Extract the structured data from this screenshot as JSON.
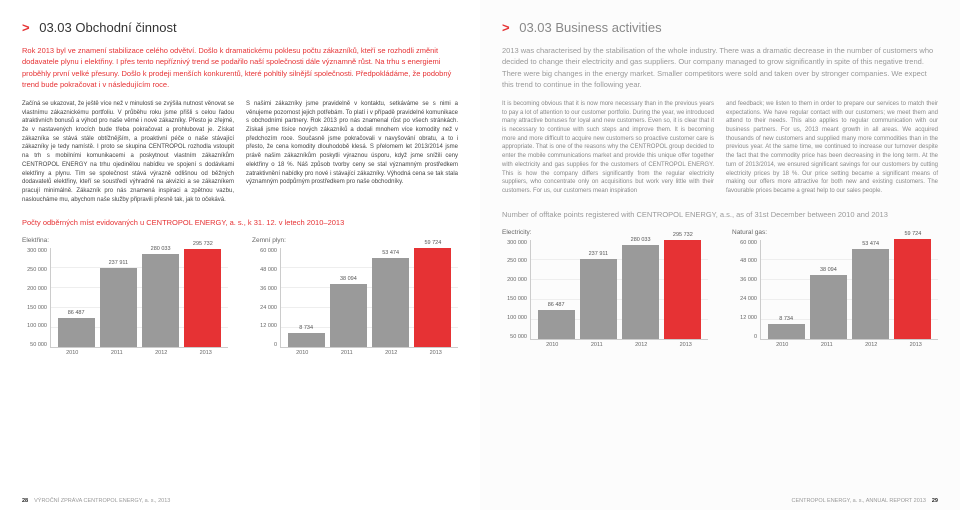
{
  "left": {
    "section_number": "03.03",
    "section_title": "Obchodní činnost",
    "lead": "Rok 2013 byl ve znamení stabilizace celého odvětví. Došlo k dramatickému poklesu počtu zákazníků, kteří se rozhodli změnit dodavatele plynu i elektřiny. I přes tento nepříznivý trend se podařilo naší společnosti dále významně růst. Na trhu s energiemi proběhly první velké přesuny. Došlo k prodeji menších konkurentů, které pohltily silnější společnosti. Předpokládáme, že podobný trend bude pokračovat i v následujícím roce.",
    "col1": "Začíná se ukazovat, že ještě více než v minulosti se zvýšila nutnost věnovat se vlastnímu zákaznickému portfoliu. V průběhu roku jsme přišli s celou řadou atraktivních bonusů a výhod pro naše věrné i nové zákazníky. Přesto je zřejmé, že v nastavených krocích bude třeba pokračovat a prohlubovat je. Získat zákazníka se stává stále obtížnějším, a proaktivní péče o naše stávající zákazníky je tedy namístě. I proto se skupina CENTROPOL rozhodla vstoupit na trh s mobilními komunikacemi a poskytnout vlastním zákazníkům CENTROPOL ENERGY na trhu ojedinělou nabídku ve spojení s dodávkami elektřiny a plynu. Tím se společnost stává výrazně odlišnou od běžných dodavatelů elektřiny, kteří se soustředí výhradně na akvizici a se zákazníkem pracují minimálně. Zákazník pro nás znamená inspiraci a zpětnou vazbu, nasloucháme mu, abychom naše služby připravili přesně tak, jak to očekává.",
    "col2": "S našimi zákazníky jsme pravidelně v kontaktu, setkáváme se s nimi a věnujeme pozornost jejich potřebám. To platí i v případě pravidelné komunikace s obchodními partnery.\n\nRok 2013 pro nás znamenal růst po všech stránkách. Získali jsme tisíce nových zákazníků a dodali mnohem více komodity než v předchozím roce. Současně jsme pokračovali v navyšování obratu, a to i přesto, že cena komodity dlouhodobě klesá. S přelomem let 2013/2014 jsme právě našim zákazníkům poskytli výraznou úsporu, když jsme snížili ceny elektřiny o 18 %. Náš způsob tvorby ceny se stal významným prostředkem zatraktivnění nabídky pro nové i stávající zákazníky. Výhodná cena se tak stala významným podpůrným prostředkem pro naše obchodníky.",
    "chart_caption": "Počty odběrných míst evidovaných u CENTROPOL ENERGY, a. s., k 31. 12. v letech 2010–2013",
    "chart_e_label": "Elektřina:",
    "chart_g_label": "Zemní plyn:",
    "footer_num": "28",
    "footer_text": "VÝROČNÍ ZPRÁVA CENTROPOL ENERGY, a. s., 2013"
  },
  "right": {
    "section_number": "03.03",
    "section_title": "Business activities",
    "lead": "2013 was characterised by the stabilisation of the whole industry. There was a dramatic decrease in the number of customers who decided to change their electricity and gas suppliers. Our company managed to grow significantly in spite of this negative trend. There were big changes in the energy market. Smaller competitors were sold and taken over by stronger companies. We expect this trend to continue in the following year.",
    "col1": "It is becoming obvious that it is now more necessary than in the previous years to pay a lot of attention to our customer portfolio. During the year, we introduced many attractive bonuses for loyal and new customers. Even so, it is clear that it is necessary to continue with such steps and improve them. It is becoming more and more difficult to acquire new customers so proactive customer care is appropriate. That is one of the reasons why the CENTROPOL group decided to enter the mobile communications market and provide this unique offer together with electricity and gas supplies for the customers of CENTROPOL ENERGY. This is how the company differs significantly from the regular electricity suppliers, who concentrate only on acquisitions but work very little with their customers. For us, our customers mean inspiration",
    "col2": "and feedback; we listen to them in order to prepare our services to match their expectations. We have regular contact with our customers; we meet them and attend to their needs. This also applies to regular communication with our business partners.\n\nFor us, 2013 meant growth in all areas. We acquired thousands of new customers and supplied many more commodities than in the previous year. At the same time, we continued to increase our turnover despite the fact that the commodity price has been decreasing in the long term. At the turn of 2013/2014, we ensured significant savings for our customers by cutting electricity prices by 18 %. Our price setting became a significant means of making our offers more attractive for both new and existing customers. The favourable prices became a great help to our sales people.",
    "chart_caption": "Number of offtake points registered with CENTROPOL ENERGY, a.s., as of 31st December between 2010 and 2013",
    "chart_e_label": "Electricity:",
    "chart_g_label": "Natural gas:",
    "footer_num": "29",
    "footer_text": "CENTROPOL ENERGY, a. s., ANNUAL REPORT 2013"
  },
  "charts": {
    "electricity": {
      "type": "bar",
      "categories": [
        "2010",
        "2011",
        "2012",
        "2013"
      ],
      "values": [
        86487,
        237911,
        280033,
        295732
      ],
      "value_labels": [
        "86 487",
        "237 911",
        "280 033",
        "295 732"
      ],
      "bar_colors": [
        "#9a9a9a",
        "#9a9a9a",
        "#9a9a9a",
        "#e63234"
      ],
      "y_ticks": [
        "300 000",
        "250 000",
        "200 000",
        "150 000",
        "100 000",
        "50 000"
      ],
      "y_max": 300000
    },
    "gas": {
      "type": "bar",
      "categories": [
        "2010",
        "2011",
        "2012",
        "2013"
      ],
      "values": [
        8734,
        38094,
        53474,
        59724
      ],
      "value_labels": [
        "8 734",
        "38 094",
        "53 474",
        "59 724"
      ],
      "bar_colors": [
        "#9a9a9a",
        "#9a9a9a",
        "#9a9a9a",
        "#e63234"
      ],
      "y_ticks": [
        "60 000",
        "48 000",
        "36 000",
        "24 000",
        "12 000",
        "0"
      ],
      "y_max": 60000
    },
    "grid_color": "#eeeeee",
    "axis_color": "#cccccc",
    "label_fontsize": 5.5,
    "background_color": "#ffffff"
  }
}
